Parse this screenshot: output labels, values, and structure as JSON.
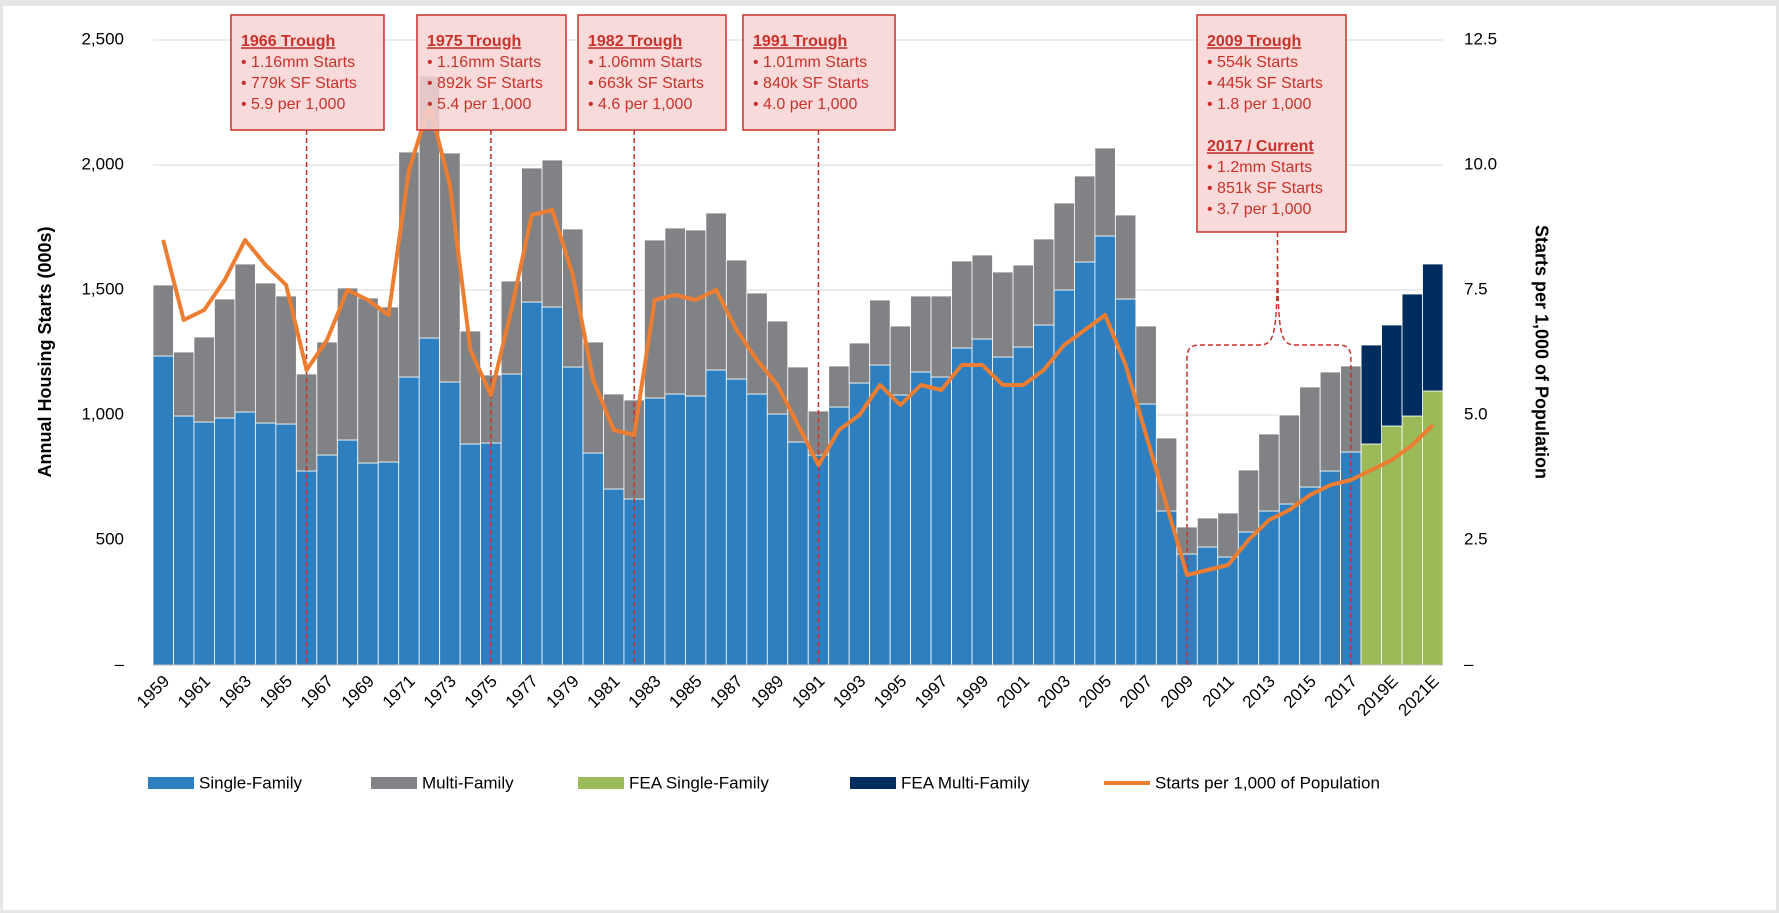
{
  "chart_data": {
    "type": "bar",
    "stacked": true,
    "y_label": "Annual Housing Starts (000s)",
    "y2_label": "Starts per 1,000 of Population",
    "categories": [
      "1959",
      null,
      "1961",
      null,
      "1963",
      null,
      "1965",
      null,
      "1967",
      null,
      "1969",
      null,
      "1971",
      null,
      "1973",
      null,
      "1975",
      null,
      "1977",
      null,
      "1979",
      null,
      "1981",
      null,
      "1983",
      null,
      "1985",
      null,
      "1987",
      null,
      "1989",
      null,
      "1991",
      null,
      "1993",
      null,
      "1995",
      null,
      "1997",
      null,
      "1999",
      null,
      "2001",
      null,
      "2003",
      null,
      "2005",
      null,
      "2007",
      null,
      "2009",
      null,
      "2011",
      null,
      "2013",
      null,
      "2015",
      null,
      "2017",
      null,
      "2019E",
      null,
      "2021E"
    ],
    "series": [
      {
        "name": "Single-Family",
        "color": "#2e7fc0",
        "values": [
          1236,
          996,
          972,
          988,
          1012,
          968,
          964,
          776,
          840,
          900,
          808,
          812,
          1152,
          1308,
          1132,
          884,
          888,
          1164,
          1452,
          1432,
          1192,
          848,
          704,
          664,
          1068,
          1084,
          1076,
          1180,
          1144,
          1084,
          1004,
          892,
          840,
          1032,
          1128,
          1200,
          1080,
          1172,
          1152,
          1268,
          1304,
          1232,
          1272,
          1360,
          1500,
          1612,
          1716,
          1464,
          1044,
          616,
          444,
          472,
          432,
          532,
          616,
          644,
          712,
          776,
          852,
          null,
          null,
          null,
          null
        ]
      },
      {
        "name": "Multi-Family",
        "color": "#808285",
        "values": [
          284,
          256,
          340,
          476,
          592,
          560,
          512,
          388,
          452,
          608,
          660,
          620,
          900,
          1048,
          916,
          452,
          272,
          372,
          536,
          588,
          552,
          444,
          380,
          396,
          632,
          664,
          664,
          628,
          476,
          404,
          372,
          300,
          176,
          164,
          160,
          260,
          276,
          304,
          324,
          348,
          336,
          340,
          328,
          344,
          348,
          344,
          352,
          336,
          312,
          292,
          108,
          116,
          176,
          248,
          308,
          356,
          400,
          396,
          344,
          null,
          null,
          null,
          null
        ]
      },
      {
        "name": "FEA Single-Family",
        "color": "#9bbb59",
        "values": [
          null,
          null,
          null,
          null,
          null,
          null,
          null,
          null,
          null,
          null,
          null,
          null,
          null,
          null,
          null,
          null,
          null,
          null,
          null,
          null,
          null,
          null,
          null,
          null,
          null,
          null,
          null,
          null,
          null,
          null,
          null,
          null,
          null,
          null,
          null,
          null,
          null,
          null,
          null,
          null,
          null,
          null,
          null,
          null,
          null,
          null,
          null,
          null,
          null,
          null,
          null,
          null,
          null,
          null,
          null,
          null,
          null,
          null,
          null,
          884,
          956,
          996,
          1096
        ]
      },
      {
        "name": "FEA Multi-Family",
        "color": "#002d5e",
        "values": [
          null,
          null,
          null,
          null,
          null,
          null,
          null,
          null,
          null,
          null,
          null,
          null,
          null,
          null,
          null,
          null,
          null,
          null,
          null,
          null,
          null,
          null,
          null,
          null,
          null,
          null,
          null,
          null,
          null,
          null,
          null,
          null,
          null,
          null,
          null,
          null,
          null,
          null,
          null,
          null,
          null,
          null,
          null,
          null,
          null,
          null,
          null,
          null,
          null,
          null,
          null,
          null,
          null,
          null,
          null,
          null,
          null,
          null,
          null,
          396,
          404,
          488,
          508
        ]
      },
      {
        "name": "Starts per 1,000 of Population",
        "color": "#ed7d31",
        "type": "line",
        "axis": "y2",
        "values": [
          8.5,
          6.9,
          7.1,
          7.7,
          8.5,
          8.0,
          7.6,
          5.9,
          6.5,
          7.5,
          7.3,
          7.0,
          9.9,
          11.2,
          9.6,
          6.3,
          5.4,
          7.1,
          9.0,
          9.1,
          7.8,
          5.7,
          4.7,
          4.6,
          7.3,
          7.4,
          7.3,
          7.5,
          6.7,
          6.1,
          5.6,
          4.8,
          4.0,
          4.7,
          5.0,
          5.6,
          5.2,
          5.6,
          5.5,
          6.0,
          6.0,
          5.6,
          5.6,
          5.9,
          6.4,
          6.7,
          7.0,
          6.0,
          4.6,
          3.2,
          1.8,
          1.9,
          2.0,
          2.5,
          2.9,
          3.1,
          3.4,
          3.6,
          3.7,
          3.9,
          4.1,
          4.4,
          4.8
        ]
      }
    ],
    "ylim": [
      0,
      2500
    ],
    "yticks": [
      {
        "value": 0,
        "label": "–"
      },
      500,
      {
        "value": 1000,
        "label": "1,000"
      },
      {
        "value": 1500,
        "label": "1,500"
      },
      {
        "value": 2000,
        "label": "2,000"
      },
      {
        "value": 2500,
        "label": "2,500"
      }
    ],
    "y2lim": [
      0,
      12.5
    ],
    "y2ticks": [
      {
        "value": 0,
        "label": "–"
      },
      2.5,
      {
        "value": 5,
        "label": "5.0"
      },
      7.5,
      {
        "value": 10,
        "label": "10.0"
      },
      12.5
    ],
    "grid": true,
    "legend": "bottom",
    "annotations": [
      {
        "title": "1966 Trough",
        "lines": [
          "• 1.16mm Starts",
          "• 779k SF Starts",
          "• 5.9 per 1,000"
        ]
      },
      {
        "title": "1975 Trough",
        "lines": [
          "• 1.16mm Starts",
          "• 892k SF Starts",
          "• 5.4 per 1,000"
        ]
      },
      {
        "title": "1982 Trough",
        "lines": [
          "• 1.06mm Starts",
          "• 663k SF Starts",
          "• 4.6 per 1,000"
        ]
      },
      {
        "title": "1991 Trough",
        "lines": [
          "• 1.01mm Starts",
          "• 840k SF Starts",
          "• 4.0 per 1,000"
        ]
      },
      {
        "title": "2009 Trough",
        "lines": [
          "• 554k Starts",
          "• 445k SF Starts",
          "• 1.8 per 1,000"
        ]
      },
      {
        "title": "2017 / Current",
        "lines": [
          "• 1.2mm Starts",
          "• 851k SF Starts",
          "• 3.7 per 1,000"
        ]
      }
    ]
  }
}
